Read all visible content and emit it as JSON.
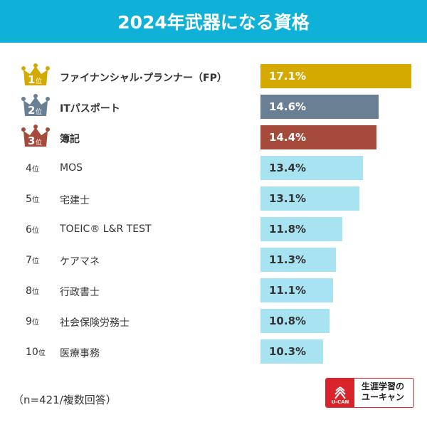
{
  "title": "2024年武器になる資格",
  "rank_suffix": "位",
  "note": "（n=421/複数回答）",
  "logo": {
    "mark": "U-CAN",
    "line1": "生涯学習の",
    "line2": "ユーキャン"
  },
  "colors": {
    "header": "#10b1d8",
    "gold": "#d4a900",
    "silver": "#687f94",
    "bronze": "#a64a3c",
    "default": "#a8e3f1"
  },
  "chart_data": {
    "type": "bar",
    "orientation": "horizontal",
    "categories": [
      "ファイナンシャル·プランナー（FP）",
      "ITパスポート",
      "簿記",
      "MOS",
      "宅建士",
      "TOEIC® L&R TEST",
      "ケアマネ",
      "行政書士",
      "社会保険労務士",
      "医療事務"
    ],
    "ranks": [
      "1",
      "2",
      "3",
      "4",
      "5",
      "6",
      "7",
      "8",
      "9",
      "10"
    ],
    "values": [
      17.1,
      14.6,
      14.4,
      13.4,
      13.1,
      11.8,
      11.3,
      11.1,
      10.8,
      10.3
    ],
    "labels": [
      "17.1%",
      "14.6%",
      "14.4%",
      "13.4%",
      "13.1%",
      "11.8%",
      "11.3%",
      "11.1%",
      "10.8%",
      "10.3%"
    ],
    "unit": "%",
    "grid": false,
    "legend": "none"
  }
}
